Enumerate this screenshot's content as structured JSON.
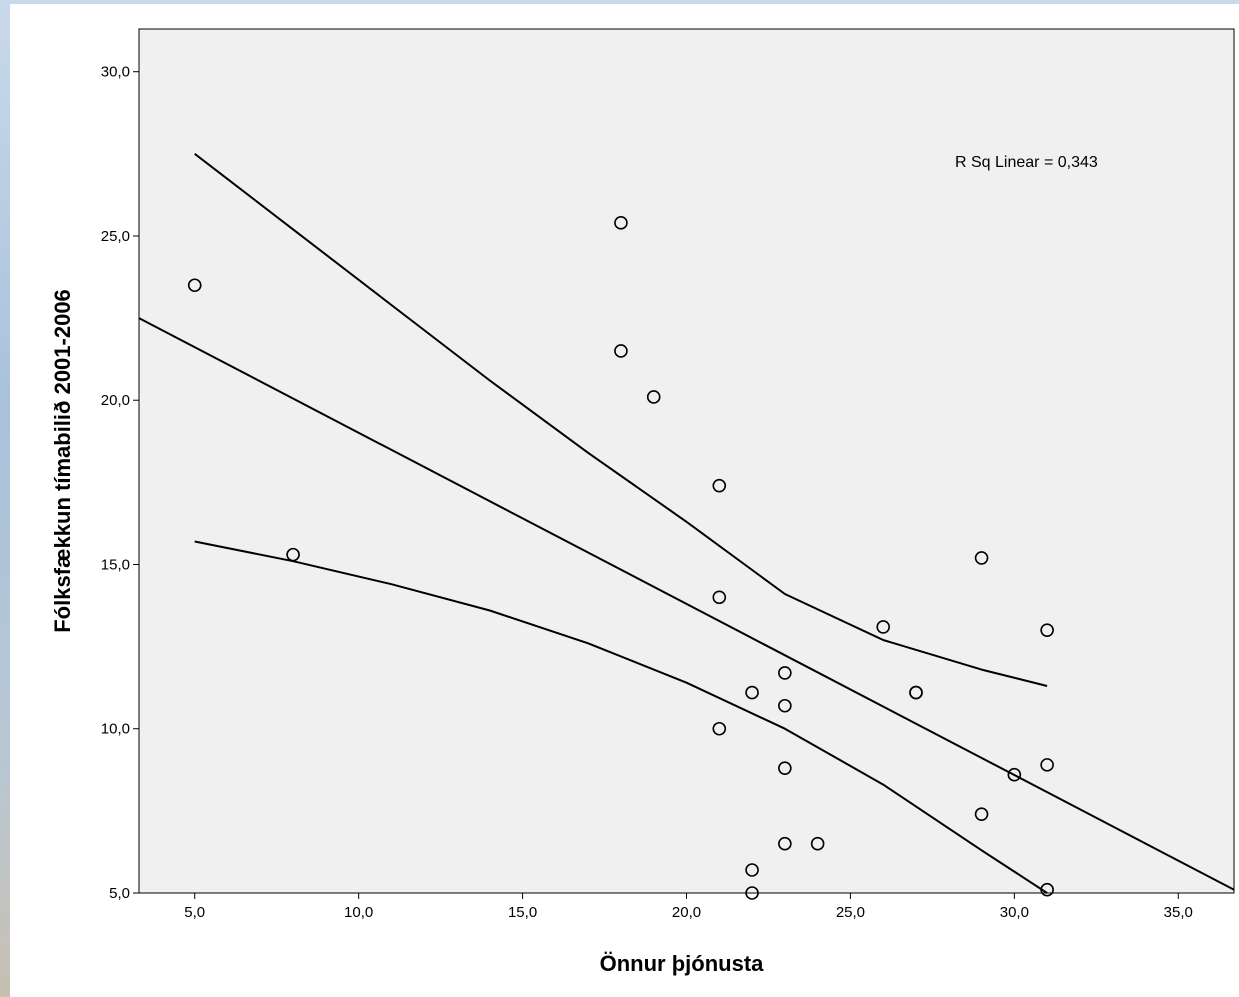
{
  "chart_data": {
    "type": "scatter",
    "title": "",
    "xlabel": "Önnur þjónusta",
    "ylabel": "Fólksfækkun tímabilið 2001-2006",
    "xlim": [
      3.3,
      36.7
    ],
    "ylim": [
      5.0,
      31.3
    ],
    "xticks": [
      5.0,
      10.0,
      15.0,
      20.0,
      25.0,
      30.0,
      35.0
    ],
    "xtick_labels": [
      "5,0",
      "10,0",
      "15,0",
      "20,0",
      "25,0",
      "30,0",
      "35,0"
    ],
    "yticks": [
      5.0,
      10.0,
      15.0,
      20.0,
      25.0,
      30.0
    ],
    "ytick_labels": [
      "5,0",
      "10,0",
      "15,0",
      "20,0",
      "25,0",
      "30,0"
    ],
    "grid": false,
    "background": "#f0f0f0",
    "points": [
      {
        "x": 5,
        "y": 23.5
      },
      {
        "x": 8,
        "y": 15.3
      },
      {
        "x": 18,
        "y": 25.4
      },
      {
        "x": 18,
        "y": 21.5
      },
      {
        "x": 19,
        "y": 20.1
      },
      {
        "x": 21,
        "y": 17.4
      },
      {
        "x": 21,
        "y": 14.0
      },
      {
        "x": 21,
        "y": 10.0
      },
      {
        "x": 22,
        "y": 11.1
      },
      {
        "x": 22,
        "y": 5.7
      },
      {
        "x": 22,
        "y": 5.0
      },
      {
        "x": 23,
        "y": 11.7
      },
      {
        "x": 23,
        "y": 10.7
      },
      {
        "x": 23,
        "y": 8.8
      },
      {
        "x": 23,
        "y": 6.5
      },
      {
        "x": 24,
        "y": 6.5
      },
      {
        "x": 26,
        "y": 13.1
      },
      {
        "x": 27,
        "y": 11.1
      },
      {
        "x": 27,
        "y": 11.1
      },
      {
        "x": 29,
        "y": 15.2
      },
      {
        "x": 29,
        "y": 7.4
      },
      {
        "x": 30,
        "y": 8.6
      },
      {
        "x": 31,
        "y": 13.0
      },
      {
        "x": 31,
        "y": 8.9
      },
      {
        "x": 31,
        "y": 5.1
      }
    ],
    "fit_line": {
      "x": [
        3.3,
        36.7
      ],
      "y": [
        22.5,
        5.1
      ]
    },
    "ci_upper": {
      "x": [
        5,
        8,
        11,
        14,
        17,
        20,
        23,
        26,
        29,
        31
      ],
      "y": [
        27.5,
        25.2,
        22.9,
        20.6,
        18.4,
        16.3,
        14.1,
        12.7,
        11.8,
        11.3
      ]
    },
    "ci_lower": {
      "x": [
        5,
        8,
        11,
        14,
        17,
        20,
        23,
        26,
        29,
        31
      ],
      "y": [
        15.7,
        15.1,
        14.4,
        13.6,
        12.6,
        11.4,
        10.0,
        8.3,
        6.3,
        5.0
      ]
    },
    "annotation": "R Sq Linear = 0,343",
    "colors": {
      "plot_background": "#f0f0f0",
      "marker_stroke": "#000000",
      "line": "#000000",
      "frame_background": "#ffffff"
    }
  }
}
